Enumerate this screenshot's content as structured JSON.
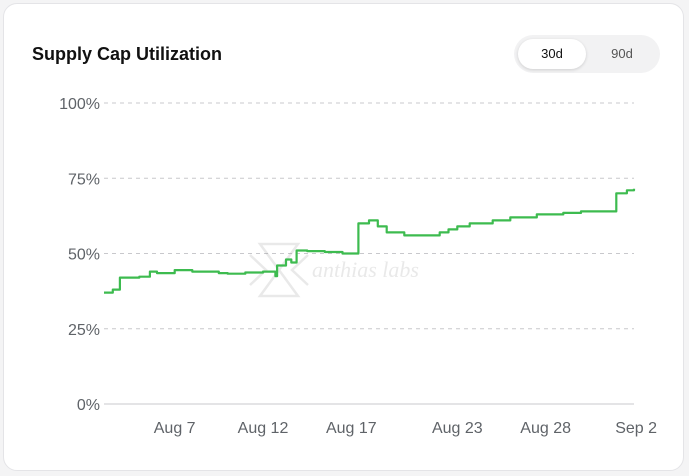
{
  "header": {
    "title": "Supply Cap Utilization",
    "range_options": [
      "30d",
      "90d"
    ],
    "selected_range": "30d"
  },
  "watermark": "anthias labs",
  "chart_data": {
    "type": "line",
    "title": "Supply Cap Utilization",
    "xlabel": "",
    "ylabel": "",
    "x_tick_labels": [
      "Aug 7",
      "Aug 12",
      "Aug 17",
      "Aug 23",
      "Aug 28",
      "Sep 2"
    ],
    "y_tick_labels": [
      "100%",
      "75%",
      "50%",
      "25%",
      "0%"
    ],
    "y_ticks": [
      100,
      75,
      50,
      25,
      0
    ],
    "ylim": [
      0,
      100
    ],
    "xlim": [
      "Aug 3",
      "Sep 2"
    ],
    "grid": "horizontal dashed",
    "legend": "none",
    "color": "#3dbb4f",
    "series": [
      {
        "points": [
          [
            "Aug 3",
            37
          ],
          [
            "Aug 3.5",
            38
          ],
          [
            "Aug 3.9",
            42
          ],
          [
            "Aug 5",
            42.3
          ],
          [
            "Aug 5.6",
            44
          ],
          [
            "Aug 6",
            43.5
          ],
          [
            "Aug 7",
            44.5
          ],
          [
            "Aug 8",
            44
          ],
          [
            "Aug 9.5",
            43.5
          ],
          [
            "Aug 10",
            43.3
          ],
          [
            "Aug 11",
            43.7
          ],
          [
            "Aug 12",
            44
          ],
          [
            "Aug 12.7",
            42.5
          ],
          [
            "Aug 12.8",
            46
          ],
          [
            "Aug 13.3",
            48
          ],
          [
            "Aug 13.6",
            47
          ],
          [
            "Aug 13.9",
            51
          ],
          [
            "Aug 14.5",
            50.8
          ],
          [
            "Aug 15.5",
            50.5
          ],
          [
            "Aug 16",
            50.5
          ],
          [
            "Aug 16.5",
            50
          ],
          [
            "Aug 17.3",
            50
          ],
          [
            "Aug 17.4",
            60
          ],
          [
            "Aug 18",
            61
          ],
          [
            "Aug 18.5",
            59
          ],
          [
            "Aug 19",
            57
          ],
          [
            "Aug 20",
            56
          ],
          [
            "Aug 21",
            56
          ],
          [
            "Aug 22",
            57
          ],
          [
            "Aug 22.5",
            58
          ],
          [
            "Aug 23",
            59
          ],
          [
            "Aug 23.7",
            60
          ],
          [
            "Aug 25",
            61
          ],
          [
            "Aug 26",
            62
          ],
          [
            "Aug 27",
            62
          ],
          [
            "Aug 27.5",
            63
          ],
          [
            "Aug 29",
            63.5
          ],
          [
            "Aug 30",
            64
          ],
          [
            "Aug 31",
            64
          ],
          [
            "Sep 1",
            70
          ],
          [
            "Sep 1.6",
            71
          ],
          [
            "Sep 2",
            71.5
          ]
        ]
      }
    ]
  }
}
